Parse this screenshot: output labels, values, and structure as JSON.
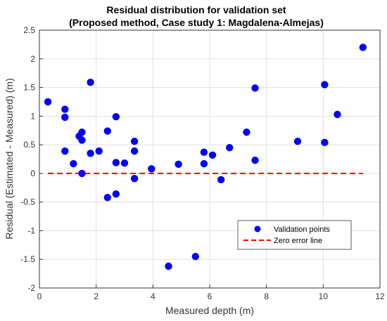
{
  "chart_data": {
    "type": "scatter",
    "title": [
      "Residual distribution for validation set",
      "(Proposed method, Case study 1: Magdalena-Almejas)"
    ],
    "xlabel": "Measured depth (m)",
    "ylabel": "Residual (Estimated - Measured) (m)",
    "xlim": [
      0,
      12
    ],
    "ylim": [
      -2,
      2.5
    ],
    "xticks": [
      "0",
      "2",
      "4",
      "6",
      "8",
      "10",
      "12"
    ],
    "yticks": [
      "-2",
      "-1.5",
      "-1",
      "-0.5",
      "0",
      "0.5",
      "1",
      "1.5",
      "2",
      "2.5"
    ],
    "grid": true,
    "legend_position": "bottom-right",
    "colors": {
      "points": "#0000ff",
      "zero_line": "#ff0000",
      "grid": "#e0e0e0"
    },
    "series": [
      {
        "name": "Validation points",
        "points": [
          [
            0.3,
            1.25
          ],
          [
            0.9,
            1.12
          ],
          [
            0.9,
            0.98
          ],
          [
            0.9,
            0.39
          ],
          [
            1.2,
            0.17
          ],
          [
            1.4,
            0.65
          ],
          [
            1.5,
            0.72
          ],
          [
            1.5,
            0.58
          ],
          [
            1.5,
            0.0
          ],
          [
            1.8,
            1.59
          ],
          [
            1.8,
            0.35
          ],
          [
            2.1,
            0.39
          ],
          [
            2.4,
            0.74
          ],
          [
            2.4,
            -0.42
          ],
          [
            2.7,
            0.99
          ],
          [
            2.7,
            0.19
          ],
          [
            2.7,
            -0.36
          ],
          [
            3.0,
            0.18
          ],
          [
            3.35,
            0.56
          ],
          [
            3.35,
            0.39
          ],
          [
            3.35,
            -0.09
          ],
          [
            3.95,
            0.08
          ],
          [
            4.55,
            -1.62
          ],
          [
            4.9,
            0.16
          ],
          [
            5.5,
            -1.45
          ],
          [
            5.8,
            0.37
          ],
          [
            5.8,
            0.17
          ],
          [
            6.1,
            0.32
          ],
          [
            6.4,
            -0.11
          ],
          [
            6.7,
            0.45
          ],
          [
            7.3,
            0.72
          ],
          [
            7.6,
            1.49
          ],
          [
            7.6,
            0.23
          ],
          [
            9.1,
            0.56
          ],
          [
            10.05,
            1.55
          ],
          [
            10.05,
            0.54
          ],
          [
            10.5,
            1.03
          ],
          [
            11.4,
            2.2
          ]
        ]
      },
      {
        "name": "Zero error line",
        "points": [
          [
            0.3,
            0
          ],
          [
            11.4,
            0
          ]
        ]
      }
    ]
  }
}
